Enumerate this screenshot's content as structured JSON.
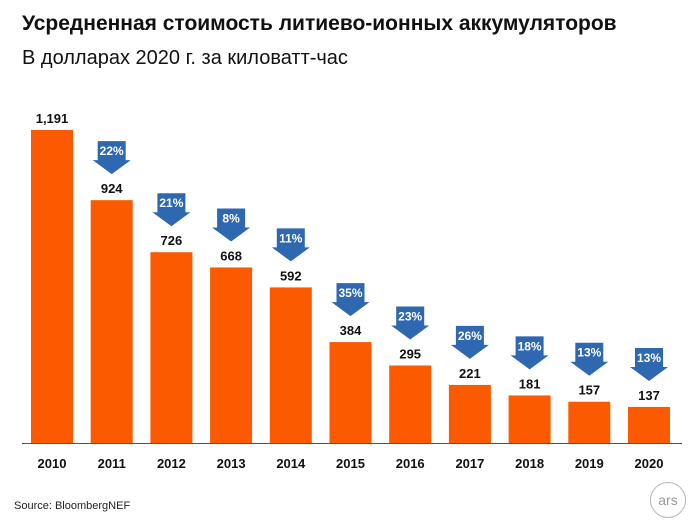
{
  "title": "Усредненная стоимость литиево-ионных аккумуляторов",
  "subtitle": "В долларах 2020 г. за киловатт-час",
  "source": "Source: BloombergNEF",
  "logo_text": "ars",
  "colors": {
    "bar": "#fb5a00",
    "arrow": "#2e68b0",
    "arrow_text": "#ffffff",
    "axis": "#555555"
  },
  "chart_data": {
    "type": "bar",
    "title": "Усредненная стоимость литиево-ионных аккумуляторов",
    "subtitle": "В долларах 2020 г. за киловатт-час",
    "xlabel": "",
    "ylabel": "",
    "ylim": [
      0,
      1191
    ],
    "grid": false,
    "categories": [
      "2010",
      "2011",
      "2012",
      "2013",
      "2014",
      "2015",
      "2016",
      "2017",
      "2018",
      "2019",
      "2020"
    ],
    "values": [
      1191,
      924,
      726,
      668,
      592,
      384,
      295,
      221,
      181,
      157,
      137
    ],
    "value_labels": [
      "1,191",
      "924",
      "726",
      "668",
      "592",
      "384",
      "295",
      "221",
      "181",
      "157",
      "137"
    ],
    "decline_labels": [
      "",
      "22%",
      "21%",
      "8%",
      "11%",
      "35%",
      "23%",
      "26%",
      "18%",
      "13%",
      "13%"
    ]
  }
}
